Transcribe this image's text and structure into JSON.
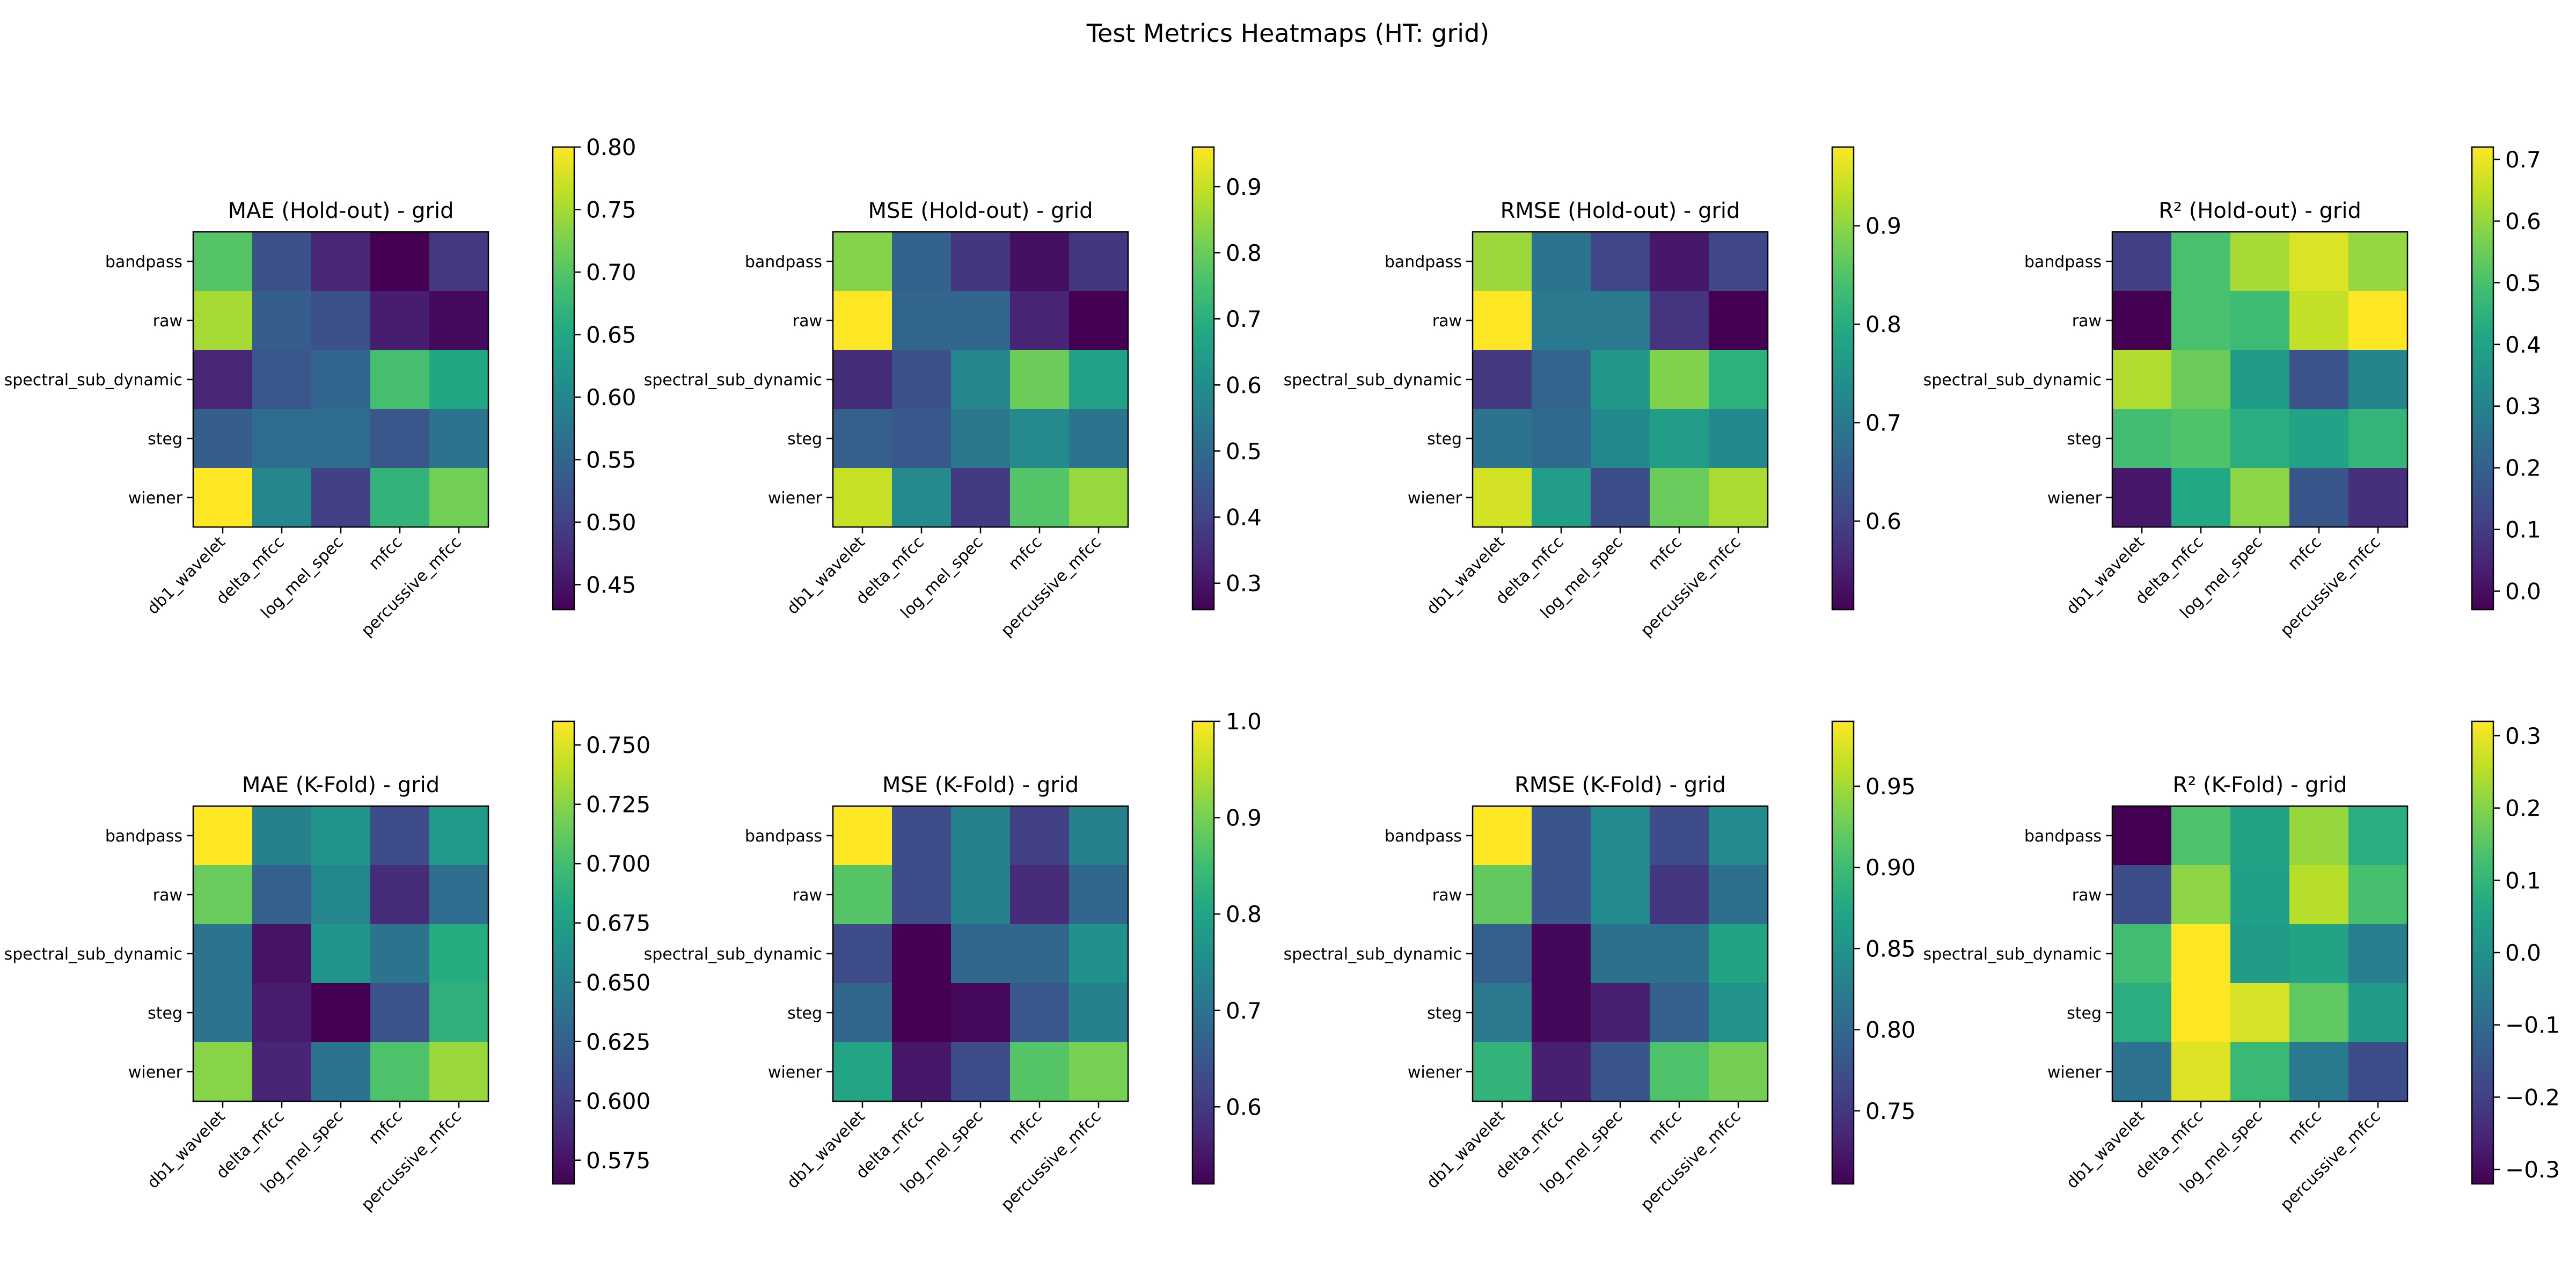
{
  "suptitle": "Test Metrics Heatmaps (HT: grid)",
  "rows": [
    "bandpass",
    "raw",
    "spectral_sub_dynamic",
    "steg",
    "wiener"
  ],
  "cols": [
    "db1_wavelet",
    "delta_mfcc",
    "log_mel_spec",
    "mfcc",
    "percussive_mfcc"
  ],
  "colormap": "viridis",
  "chart_data": [
    {
      "type": "heatmap",
      "title": "MAE (Hold-out) - grid",
      "vmin": 0.43,
      "vmax": 0.8,
      "ticks": [
        0.45,
        0.5,
        0.55,
        0.6,
        0.65,
        0.7,
        0.75,
        0.8
      ],
      "tick_labels": [
        "0.45",
        "0.50",
        "0.55",
        "0.60",
        "0.65",
        "0.70",
        "0.75",
        "0.80"
      ],
      "values": [
        [
          0.7,
          0.52,
          0.47,
          0.43,
          0.49
        ],
        [
          0.75,
          0.54,
          0.52,
          0.46,
          0.44
        ],
        [
          0.47,
          0.53,
          0.55,
          0.69,
          0.65
        ],
        [
          0.54,
          0.56,
          0.56,
          0.53,
          0.57
        ],
        [
          0.8,
          0.6,
          0.5,
          0.67,
          0.72
        ]
      ]
    },
    {
      "type": "heatmap",
      "title": "MSE (Hold-out) - grid",
      "vmin": 0.26,
      "vmax": 0.96,
      "ticks": [
        0.3,
        0.4,
        0.5,
        0.6,
        0.7,
        0.8,
        0.9
      ],
      "tick_labels": [
        "0.3",
        "0.4",
        "0.5",
        "0.6",
        "0.7",
        "0.8",
        "0.9"
      ],
      "values": [
        [
          0.83,
          0.48,
          0.37,
          0.29,
          0.37
        ],
        [
          0.96,
          0.49,
          0.49,
          0.33,
          0.26
        ],
        [
          0.35,
          0.43,
          0.58,
          0.8,
          0.66
        ],
        [
          0.47,
          0.45,
          0.54,
          0.59,
          0.53
        ],
        [
          0.9,
          0.59,
          0.38,
          0.77,
          0.85
        ]
      ]
    },
    {
      "type": "heatmap",
      "title": "RMSE (Hold-out) - grid",
      "vmin": 0.51,
      "vmax": 0.98,
      "ticks": [
        0.6,
        0.7,
        0.8,
        0.9
      ],
      "tick_labels": [
        "0.6",
        "0.7",
        "0.8",
        "0.9"
      ],
      "values": [
        [
          0.91,
          0.69,
          0.61,
          0.54,
          0.61
        ],
        [
          0.98,
          0.7,
          0.7,
          0.58,
          0.51
        ],
        [
          0.59,
          0.66,
          0.76,
          0.89,
          0.81
        ],
        [
          0.69,
          0.67,
          0.73,
          0.77,
          0.73
        ],
        [
          0.95,
          0.77,
          0.62,
          0.87,
          0.92
        ]
      ]
    },
    {
      "type": "heatmap",
      "title": "R² (Hold-out) - grid",
      "vmin": -0.03,
      "vmax": 0.72,
      "ticks": [
        0.0,
        0.1,
        0.2,
        0.3,
        0.4,
        0.5,
        0.6,
        0.7
      ],
      "tick_labels": [
        "0.0",
        "0.1",
        "0.2",
        "0.3",
        "0.4",
        "0.5",
        "0.6",
        "0.7"
      ],
      "values": [
        [
          0.11,
          0.5,
          0.62,
          0.68,
          0.6
        ],
        [
          -0.03,
          0.5,
          0.48,
          0.65,
          0.72
        ],
        [
          0.63,
          0.55,
          0.38,
          0.16,
          0.31
        ],
        [
          0.49,
          0.51,
          0.44,
          0.4,
          0.46
        ],
        [
          0.02,
          0.42,
          0.59,
          0.17,
          0.07
        ]
      ]
    },
    {
      "type": "heatmap",
      "title": "MAE (K-Fold) - grid",
      "vmin": 0.565,
      "vmax": 0.76,
      "ticks": [
        0.575,
        0.6,
        0.625,
        0.65,
        0.675,
        0.7,
        0.725,
        0.75
      ],
      "tick_labels": [
        "0.575",
        "0.600",
        "0.625",
        "0.650",
        "0.675",
        "0.700",
        "0.725",
        "0.750"
      ],
      "values": [
        [
          0.76,
          0.65,
          0.665,
          0.61,
          0.67
        ],
        [
          0.715,
          0.625,
          0.655,
          0.59,
          0.635
        ],
        [
          0.64,
          0.575,
          0.665,
          0.64,
          0.685
        ],
        [
          0.64,
          0.58,
          0.565,
          0.615,
          0.69
        ],
        [
          0.725,
          0.585,
          0.64,
          0.705,
          0.73
        ]
      ]
    },
    {
      "type": "heatmap",
      "title": "MSE (K-Fold) - grid",
      "vmin": 0.52,
      "vmax": 1.0,
      "ticks": [
        0.6,
        0.7,
        0.8,
        0.9,
        1.0
      ],
      "tick_labels": [
        "0.6",
        "0.7",
        "0.8",
        "0.9",
        "1.0"
      ],
      "values": [
        [
          1.0,
          0.63,
          0.73,
          0.61,
          0.73
        ],
        [
          0.87,
          0.63,
          0.73,
          0.58,
          0.68
        ],
        [
          0.63,
          0.52,
          0.68,
          0.68,
          0.76
        ],
        [
          0.68,
          0.52,
          0.53,
          0.65,
          0.73
        ],
        [
          0.8,
          0.55,
          0.63,
          0.87,
          0.9
        ]
      ]
    },
    {
      "type": "heatmap",
      "title": "RMSE (K-Fold) - grid",
      "vmin": 0.705,
      "vmax": 0.99,
      "ticks": [
        0.75,
        0.8,
        0.85,
        0.9,
        0.95
      ],
      "tick_labels": [
        "0.75",
        "0.80",
        "0.85",
        "0.90",
        "0.95"
      ],
      "values": [
        [
          0.99,
          0.78,
          0.84,
          0.77,
          0.84
        ],
        [
          0.92,
          0.78,
          0.84,
          0.75,
          0.81
        ],
        [
          0.79,
          0.71,
          0.81,
          0.81,
          0.87
        ],
        [
          0.82,
          0.71,
          0.73,
          0.79,
          0.85
        ],
        [
          0.89,
          0.73,
          0.78,
          0.91,
          0.93
        ]
      ]
    },
    {
      "type": "heatmap",
      "title": "R² (K-Fold) - grid",
      "vmin": -0.32,
      "vmax": 0.32,
      "ticks": [
        -0.3,
        -0.2,
        -0.1,
        0.0,
        0.1,
        0.2,
        0.3
      ],
      "tick_labels": [
        "−0.3",
        "−0.2",
        "−0.1",
        "0.0",
        "0.1",
        "0.2",
        "0.3"
      ],
      "values": [
        [
          -0.32,
          0.14,
          0.05,
          0.22,
          0.08
        ],
        [
          -0.17,
          0.21,
          0.04,
          0.25,
          0.13
        ],
        [
          0.12,
          0.32,
          0.03,
          0.05,
          -0.05
        ],
        [
          0.08,
          0.32,
          0.28,
          0.16,
          0.03
        ],
        [
          -0.08,
          0.29,
          0.11,
          -0.06,
          -0.17
        ]
      ]
    }
  ]
}
